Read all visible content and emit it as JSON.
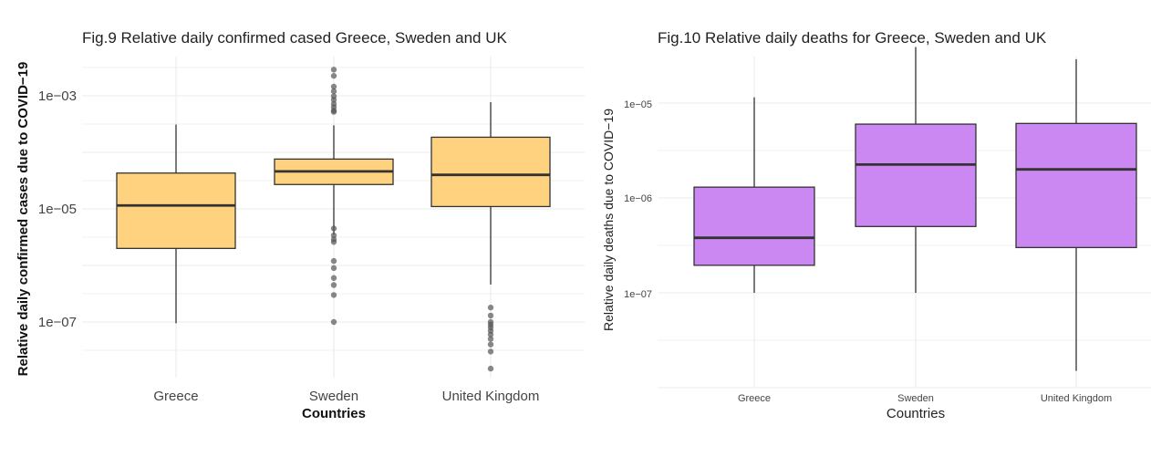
{
  "charts": [
    {
      "id": "fig9",
      "title": "Fig.9 Relative daily confirmed cased Greece, Sweden and UK",
      "xlabel": "Countries",
      "ylabel": "Relative daily confirmed cases due to COVID−19",
      "y_ticks": [
        "1e−03",
        "1e−05",
        "1e−07"
      ]
    },
    {
      "id": "fig10",
      "title": "Fig.10 Relative daily deaths for Greece, Sweden and UK",
      "xlabel": "Countries",
      "ylabel": "Relative daily deaths  due to COVID−19",
      "y_ticks": [
        "1e−05",
        "1e−06",
        "1e−07"
      ]
    }
  ],
  "colors": {
    "fig9_box_fill": "#ffd27f",
    "fig10_box_fill": "#cc88f2",
    "box_stroke": "#333333",
    "grid": "#ebebeb",
    "outlier": "#555555"
  },
  "chart_data": [
    {
      "type": "box",
      "scale": "log10",
      "title": "Fig.9 Relative daily confirmed cased Greece, Sweden and UK",
      "xlabel": "Countries",
      "ylabel": "Relative daily confirmed cases due to COVID−19",
      "categories": [
        "Greece",
        "Sweden",
        "United Kingdom"
      ],
      "ylim": [
        8e-09,
        0.0055
      ],
      "boxes": [
        {
          "category": "Greece",
          "whisker_low": 9.5e-08,
          "q1": 2e-06,
          "median": 1.15e-05,
          "q3": 4.3e-05,
          "whisker_high": 0.00031,
          "outliers": []
        },
        {
          "category": "Sweden",
          "whisker_low": 3.5e-06,
          "q1": 2.7e-05,
          "median": 4.6e-05,
          "q3": 7.6e-05,
          "whisker_high": 0.0003,
          "outliers": [
            0.0029,
            0.00225,
            0.00145,
            0.0012,
            0.00098,
            0.00085,
            0.00072,
            0.00063,
            0.00055,
            0.00052,
            4.5e-06,
            3.4e-06,
            2.9e-06,
            2.6e-06,
            1.2e-06,
            9e-07,
            6e-07,
            4.5e-07,
            3e-07,
            1e-07
          ]
        },
        {
          "category": "United Kingdom",
          "whisker_low": 4.6e-07,
          "q1": 1.1e-05,
          "median": 4e-05,
          "q3": 0.000185,
          "whisker_high": 0.00077,
          "outliers": [
            1.8e-07,
            1.3e-07,
            1e-07,
            9e-08,
            8e-08,
            7e-08,
            6e-08,
            5e-08,
            4e-08,
            3e-08,
            1.5e-08
          ]
        }
      ]
    },
    {
      "type": "box",
      "scale": "log10",
      "title": "Fig.10 Relative daily deaths for Greece, Sweden and UK",
      "xlabel": "Countries",
      "ylabel": "Relative daily deaths  due to COVID−19",
      "categories": [
        "Greece",
        "Sweden",
        "United Kingdom"
      ],
      "ylim": [
        1.5e-08,
        6e-05
      ],
      "boxes": [
        {
          "category": "Greece",
          "whisker_low": 1e-07,
          "q1": 1.95e-07,
          "median": 3.8e-07,
          "q3": 1.3e-06,
          "whisker_high": 1.15e-05,
          "outliers": []
        },
        {
          "category": "Sweden",
          "whisker_low": 1e-07,
          "q1": 5e-07,
          "median": 2.25e-06,
          "q3": 6e-06,
          "whisker_high": 3.9e-05,
          "outliers": []
        },
        {
          "category": "United Kingdom",
          "whisker_low": 1.5e-08,
          "q1": 3e-07,
          "median": 2e-06,
          "q3": 6.1e-06,
          "whisker_high": 2.9e-05,
          "outliers": []
        }
      ]
    }
  ]
}
